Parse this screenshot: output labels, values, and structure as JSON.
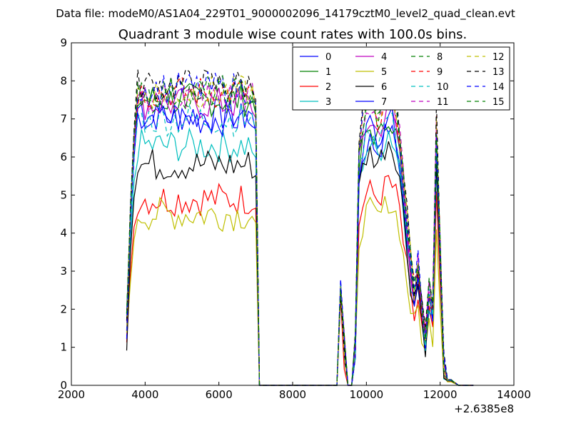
{
  "header": {
    "data_file": "Data file: modeM0/AS1A04_229T01_9000002096_14179cztM0_level2_quad_clean.evt"
  },
  "chart_data": {
    "type": "line",
    "title": "Quadrant 3 module wise count rates with 100.0s bins.",
    "xlabel": "",
    "ylabel": "",
    "x_offset_label": "+2.6385e8",
    "xlim": [
      2000,
      14000
    ],
    "ylim": [
      0,
      9
    ],
    "xticks": [
      2000,
      4000,
      6000,
      8000,
      10000,
      12000,
      14000
    ],
    "xtick_labels": [
      "2000",
      "4000",
      "6000",
      "8000",
      "10000",
      "12000",
      "14000"
    ],
    "yticks": [
      0,
      1,
      2,
      3,
      4,
      5,
      6,
      7,
      8,
      9
    ],
    "ytick_labels": [
      "0",
      "1",
      "2",
      "3",
      "4",
      "5",
      "6",
      "7",
      "8",
      "9"
    ],
    "grid": false,
    "legend_position": "top-right",
    "segments": [
      {
        "x_start": 3500,
        "x_end": 7100
      },
      {
        "x_start": 9100,
        "x_end": 12900
      }
    ],
    "series": [
      {
        "name": "0",
        "color": "#0000ff",
        "style": "solid",
        "level1": 7.1,
        "level2": 6.3,
        "peak": 5.9
      },
      {
        "name": "1",
        "color": "#008000",
        "style": "solid",
        "level1": 7.5,
        "level2": 6.6,
        "peak": 5.7
      },
      {
        "name": "2",
        "color": "#ff0000",
        "style": "solid",
        "level1": 4.9,
        "level2": 5.0,
        "peak": 5.5
      },
      {
        "name": "3",
        "color": "#00bfbf",
        "style": "solid",
        "level1": 6.3,
        "level2": 6.2,
        "peak": 5.6
      },
      {
        "name": "4",
        "color": "#bf00bf",
        "style": "solid",
        "level1": 7.4,
        "level2": 6.8,
        "peak": 5.8
      },
      {
        "name": "5",
        "color": "#bfbf00",
        "style": "solid",
        "level1": 4.5,
        "level2": 4.5,
        "peak": 5.4
      },
      {
        "name": "6",
        "color": "#000000",
        "style": "solid",
        "level1": 5.8,
        "level2": 6.0,
        "peak": 5.6
      },
      {
        "name": "7",
        "color": "#0000ff",
        "style": "solid",
        "level1": 7.0,
        "level2": 6.7,
        "peak": 5.9
      },
      {
        "name": "8",
        "color": "#008000",
        "style": "dashed",
        "level1": 7.6,
        "level2": 7.1,
        "peak": 6.0
      },
      {
        "name": "9",
        "color": "#ff0000",
        "style": "dashed",
        "level1": 7.7,
        "level2": 7.2,
        "peak": 5.9
      },
      {
        "name": "10",
        "color": "#00bfbf",
        "style": "dashed",
        "level1": 7.0,
        "level2": 6.6,
        "peak": 5.8
      },
      {
        "name": "11",
        "color": "#bf00bf",
        "style": "dashed",
        "level1": 7.6,
        "level2": 7.2,
        "peak": 5.9
      },
      {
        "name": "12",
        "color": "#bfbf00",
        "style": "dashed",
        "level1": 7.7,
        "level2": 7.3,
        "peak": 6.1
      },
      {
        "name": "13",
        "color": "#000000",
        "style": "dashed",
        "level1": 7.9,
        "level2": 7.5,
        "peak": 6.0
      },
      {
        "name": "14",
        "color": "#0000ff",
        "style": "dashed",
        "level1": 7.8,
        "level2": 7.3,
        "peak": 6.2
      },
      {
        "name": "15",
        "color": "#008000",
        "style": "dashed",
        "level1": 7.7,
        "level2": 7.2,
        "peak": 6.0
      }
    ]
  }
}
